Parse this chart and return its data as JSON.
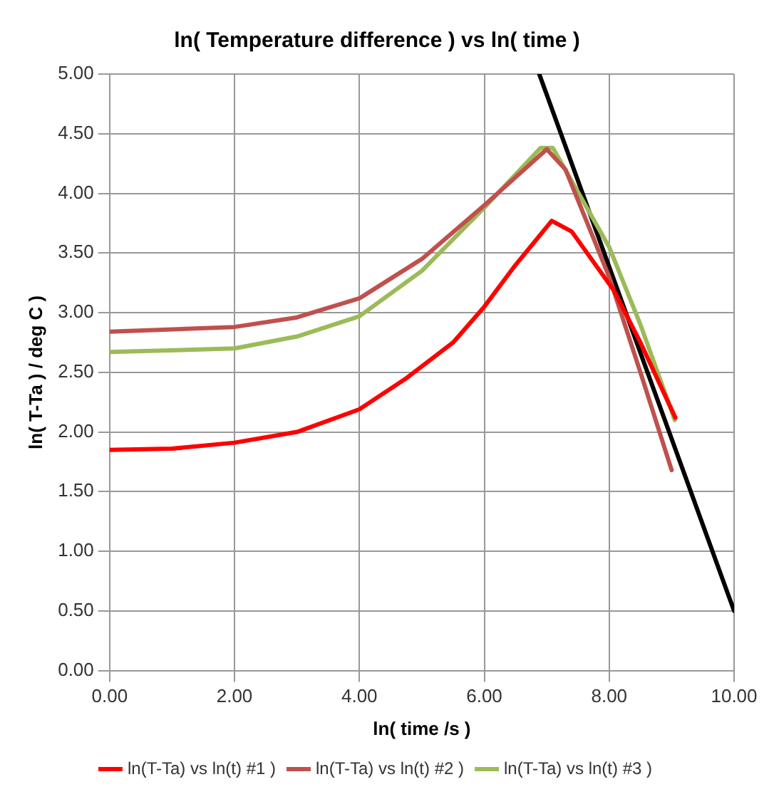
{
  "chart_data": {
    "type": "line",
    "title": "ln( Temperature difference ) vs ln( time )",
    "xlabel": "ln( time /s )",
    "ylabel": "ln( T-Ta ) / deg C )",
    "xlim": [
      0,
      10
    ],
    "xticks": [
      {
        "value": 0,
        "label": "0.00"
      },
      {
        "value": 2,
        "label": "2.00"
      },
      {
        "value": 4,
        "label": "4.00"
      },
      {
        "value": 6,
        "label": "6.00"
      },
      {
        "value": 8,
        "label": "8.00"
      },
      {
        "value": 10,
        "label": "10.00"
      }
    ],
    "ylim": [
      0,
      5
    ],
    "yticks": [
      {
        "value": 0,
        "label": "0.00"
      },
      {
        "value": 0.5,
        "label": "0.50"
      },
      {
        "value": 1,
        "label": "1.00"
      },
      {
        "value": 1.5,
        "label": "1.50"
      },
      {
        "value": 2,
        "label": "2.00"
      },
      {
        "value": 2.5,
        "label": "2.50"
      },
      {
        "value": 3,
        "label": "3.00"
      },
      {
        "value": 3.5,
        "label": "3.50"
      },
      {
        "value": 4,
        "label": "4.00"
      },
      {
        "value": 4.5,
        "label": "4.50"
      },
      {
        "value": 5,
        "label": "5.00"
      }
    ],
    "grid": true,
    "legend": "bottom",
    "marker": "none",
    "line_style": "solid",
    "series": [
      {
        "name": "ln(T-Ta) vs ln(t) #1 )",
        "color": "#ff0000",
        "x": [
          0,
          1,
          2,
          3,
          4,
          4.75,
          5.5,
          6,
          6.5,
          7.08,
          7.4,
          8.07,
          8.5,
          9.06
        ],
        "values": [
          1.85,
          1.86,
          1.91,
          2.0,
          2.19,
          2.45,
          2.75,
          3.05,
          3.4,
          3.77,
          3.68,
          3.19,
          2.75,
          2.12
        ]
      },
      {
        "name": "ln(T-Ta) vs ln(t) #2 )",
        "color": "#c0504d",
        "x": [
          0,
          2,
          3,
          4,
          5,
          6,
          7.0,
          7.3,
          8,
          8.5,
          9.0
        ],
        "values": [
          2.84,
          2.88,
          2.96,
          3.12,
          3.45,
          3.9,
          4.37,
          4.2,
          3.3,
          2.5,
          1.68
        ]
      },
      {
        "name": "ln(T-Ta) vs ln(t) #3 )",
        "color": "#9bbb59",
        "x": [
          0,
          2,
          3,
          4,
          5,
          6,
          6.9,
          7.1,
          8,
          8.5,
          9.05
        ],
        "values": [
          2.67,
          2.7,
          2.8,
          2.97,
          3.35,
          3.88,
          4.38,
          4.38,
          3.55,
          2.9,
          2.1
        ]
      },
      {
        "type": "line",
        "color": "#000000",
        "x": [
          6.88,
          10.0
        ],
        "values": [
          5.0,
          0.5
        ]
      }
    ]
  }
}
